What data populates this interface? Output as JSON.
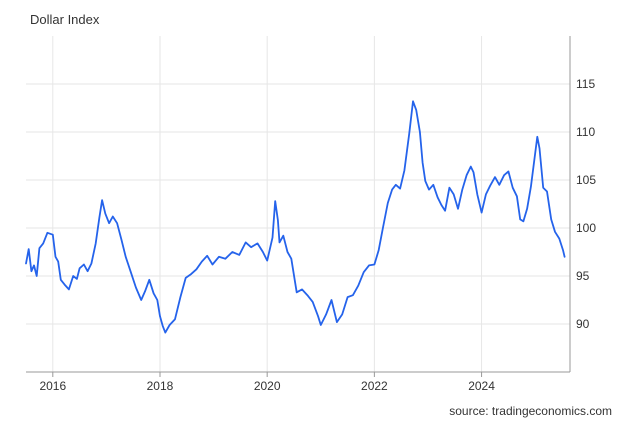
{
  "chart_data": {
    "type": "line",
    "title": "Dollar Index",
    "source": "source: tradingeconomics.com",
    "xlabel": "",
    "ylabel": "",
    "xlim": [
      2015.5,
      2025.65
    ],
    "ylim": [
      85,
      120
    ],
    "x_ticks": [
      2016,
      2018,
      2020,
      2022,
      2024
    ],
    "y_ticks": [
      90,
      95,
      100,
      105,
      110,
      115
    ],
    "grid": true,
    "y_axis_position": "right",
    "series": [
      {
        "color": "#2563eb",
        "x": [
          2015.5,
          2015.55,
          2015.6,
          2015.65,
          2015.7,
          2015.75,
          2015.82,
          2015.9,
          2016.0,
          2016.05,
          2016.1,
          2016.15,
          2016.22,
          2016.3,
          2016.38,
          2016.45,
          2016.5,
          2016.58,
          2016.65,
          2016.72,
          2016.8,
          2016.87,
          2016.92,
          2016.98,
          2017.05,
          2017.12,
          2017.2,
          2017.28,
          2017.36,
          2017.45,
          2017.55,
          2017.65,
          2017.72,
          2017.8,
          2017.88,
          2017.95,
          2018.0,
          2018.05,
          2018.1,
          2018.18,
          2018.28,
          2018.38,
          2018.48,
          2018.58,
          2018.68,
          2018.78,
          2018.88,
          2018.98,
          2019.1,
          2019.22,
          2019.35,
          2019.48,
          2019.6,
          2019.7,
          2019.82,
          2019.92,
          2020.0,
          2020.1,
          2020.15,
          2020.2,
          2020.23,
          2020.3,
          2020.38,
          2020.45,
          2020.55,
          2020.65,
          2020.75,
          2020.85,
          2020.95,
          2021.0,
          2021.1,
          2021.2,
          2021.3,
          2021.4,
          2021.5,
          2021.6,
          2021.7,
          2021.8,
          2021.9,
          2022.0,
          2022.08,
          2022.16,
          2022.25,
          2022.33,
          2022.4,
          2022.48,
          2022.56,
          2022.65,
          2022.72,
          2022.78,
          2022.85,
          2022.9,
          2022.95,
          2023.02,
          2023.1,
          2023.18,
          2023.25,
          2023.32,
          2023.4,
          2023.48,
          2023.56,
          2023.64,
          2023.72,
          2023.8,
          2023.85,
          2023.92,
          2024.0,
          2024.08,
          2024.16,
          2024.25,
          2024.33,
          2024.42,
          2024.5,
          2024.58,
          2024.66,
          2024.72,
          2024.78,
          2024.85,
          2024.92,
          2025.0,
          2025.04,
          2025.08,
          2025.15,
          2025.22,
          2025.3,
          2025.37,
          2025.45,
          2025.52,
          2025.55
        ],
        "y": [
          96.3,
          97.8,
          95.5,
          96.1,
          95.0,
          97.9,
          98.4,
          99.5,
          99.3,
          97.0,
          96.5,
          94.6,
          94.1,
          93.6,
          95.0,
          94.7,
          95.8,
          96.2,
          95.5,
          96.3,
          98.4,
          101.1,
          102.9,
          101.5,
          100.5,
          101.2,
          100.5,
          98.8,
          97.0,
          95.5,
          93.8,
          92.5,
          93.4,
          94.6,
          93.2,
          92.5,
          90.8,
          89.8,
          89.1,
          89.9,
          90.5,
          92.8,
          94.8,
          95.2,
          95.7,
          96.5,
          97.1,
          96.2,
          97.0,
          96.8,
          97.5,
          97.2,
          98.5,
          98.0,
          98.4,
          97.5,
          96.6,
          99.0,
          102.8,
          100.8,
          98.5,
          99.2,
          97.5,
          96.8,
          93.3,
          93.6,
          93.0,
          92.3,
          90.8,
          89.9,
          91.0,
          92.5,
          90.2,
          91.0,
          92.8,
          93.0,
          94.0,
          95.4,
          96.1,
          96.2,
          97.7,
          100.0,
          102.6,
          104.0,
          104.5,
          104.1,
          106.0,
          109.8,
          113.2,
          112.3,
          110.0,
          106.8,
          104.9,
          104.0,
          104.5,
          103.2,
          102.4,
          101.8,
          104.2,
          103.5,
          102.0,
          104.0,
          105.5,
          106.4,
          105.8,
          103.5,
          101.6,
          103.5,
          104.4,
          105.3,
          104.5,
          105.5,
          105.9,
          104.2,
          103.3,
          100.9,
          100.7,
          102.0,
          104.3,
          107.8,
          109.5,
          108.3,
          104.2,
          103.8,
          100.9,
          99.6,
          98.9,
          97.7,
          97.0
        ]
      }
    ]
  }
}
